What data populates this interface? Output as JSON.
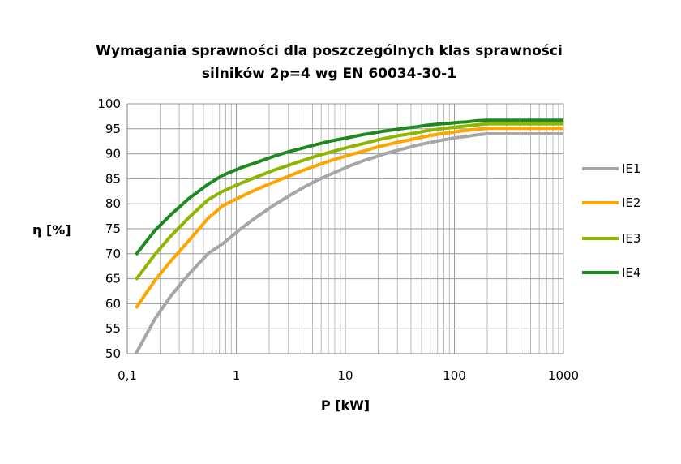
{
  "chart_data": {
    "type": "line",
    "title_line1": "Wymagania sprawności dla poszczególnych klas sprawności",
    "title_line2": "silników 2p=4 wg EN 60034-30-1",
    "xlabel": "P [kW]",
    "ylabel": "η [%]",
    "x_scale": "log",
    "xlim": [
      0.1,
      1000
    ],
    "ylim": [
      50,
      100
    ],
    "x_ticks": [
      0.1,
      1,
      10,
      100,
      1000
    ],
    "x_tick_labels": [
      "0,1",
      "1",
      "10",
      "100",
      "1000"
    ],
    "y_ticks": [
      50,
      55,
      60,
      65,
      70,
      75,
      80,
      85,
      90,
      95,
      100
    ],
    "y_tick_labels": [
      "50",
      "55",
      "60",
      "65",
      "70",
      "75",
      "80",
      "85",
      "90",
      "95",
      "100"
    ],
    "grid": true,
    "legend_position": "right",
    "series": [
      {
        "name": "IE1",
        "color": "#a6a6a6",
        "points": [
          [
            0.12,
            50.0
          ],
          [
            0.18,
            57.0
          ],
          [
            0.25,
            61.5
          ],
          [
            0.37,
            66.0
          ],
          [
            0.55,
            70.0
          ],
          [
            0.75,
            72.0
          ],
          [
            1.1,
            75.0
          ],
          [
            1.5,
            77.2
          ],
          [
            2.2,
            79.7
          ],
          [
            3,
            81.5
          ],
          [
            4,
            83.1
          ],
          [
            5.5,
            84.7
          ],
          [
            7.5,
            86.0
          ],
          [
            11,
            87.6
          ],
          [
            15,
            88.7
          ],
          [
            18.5,
            89.3
          ],
          [
            22,
            89.9
          ],
          [
            30,
            90.7
          ],
          [
            37,
            91.2
          ],
          [
            45,
            91.7
          ],
          [
            55,
            92.1
          ],
          [
            75,
            92.7
          ],
          [
            90,
            93.0
          ],
          [
            110,
            93.3
          ],
          [
            132,
            93.5
          ],
          [
            160,
            93.8
          ],
          [
            200,
            94.0
          ],
          [
            1000,
            94.0
          ]
        ]
      },
      {
        "name": "IE2",
        "color": "#ffa500",
        "points": [
          [
            0.12,
            59.1
          ],
          [
            0.18,
            64.7
          ],
          [
            0.25,
            68.5
          ],
          [
            0.37,
            72.7
          ],
          [
            0.55,
            77.1
          ],
          [
            0.75,
            79.6
          ],
          [
            1.1,
            81.4
          ],
          [
            1.5,
            82.8
          ],
          [
            2.2,
            84.3
          ],
          [
            3,
            85.5
          ],
          [
            4,
            86.6
          ],
          [
            5.5,
            87.7
          ],
          [
            7.5,
            88.7
          ],
          [
            11,
            89.8
          ],
          [
            15,
            90.6
          ],
          [
            18.5,
            91.2
          ],
          [
            22,
            91.6
          ],
          [
            30,
            92.3
          ],
          [
            37,
            92.7
          ],
          [
            45,
            93.1
          ],
          [
            55,
            93.5
          ],
          [
            75,
            94.0
          ],
          [
            90,
            94.2
          ],
          [
            110,
            94.5
          ],
          [
            132,
            94.7
          ],
          [
            160,
            94.9
          ],
          [
            200,
            95.1
          ],
          [
            1000,
            95.1
          ]
        ]
      },
      {
        "name": "IE3",
        "color": "#8db600",
        "points": [
          [
            0.12,
            64.8
          ],
          [
            0.18,
            69.9
          ],
          [
            0.25,
            73.5
          ],
          [
            0.37,
            77.3
          ],
          [
            0.55,
            80.8
          ],
          [
            0.75,
            82.5
          ],
          [
            1.1,
            84.1
          ],
          [
            1.5,
            85.3
          ],
          [
            2.2,
            86.7
          ],
          [
            3,
            87.7
          ],
          [
            4,
            88.6
          ],
          [
            5.5,
            89.6
          ],
          [
            7.5,
            90.4
          ],
          [
            11,
            91.4
          ],
          [
            15,
            92.1
          ],
          [
            18.5,
            92.6
          ],
          [
            22,
            93.0
          ],
          [
            30,
            93.6
          ],
          [
            37,
            93.9
          ],
          [
            45,
            94.2
          ],
          [
            55,
            94.6
          ],
          [
            75,
            95.0
          ],
          [
            90,
            95.2
          ],
          [
            110,
            95.4
          ],
          [
            132,
            95.6
          ],
          [
            160,
            95.8
          ],
          [
            200,
            96.0
          ],
          [
            1000,
            96.0
          ]
        ]
      },
      {
        "name": "IE4",
        "color": "#1e8a1e",
        "points": [
          [
            0.12,
            69.8
          ],
          [
            0.18,
            74.7
          ],
          [
            0.25,
            77.8
          ],
          [
            0.37,
            81.1
          ],
          [
            0.55,
            83.9
          ],
          [
            0.75,
            85.7
          ],
          [
            1.1,
            87.2
          ],
          [
            1.5,
            88.2
          ],
          [
            2.2,
            89.5
          ],
          [
            3,
            90.4
          ],
          [
            4,
            91.1
          ],
          [
            5.5,
            91.9
          ],
          [
            7.5,
            92.6
          ],
          [
            11,
            93.3
          ],
          [
            15,
            93.9
          ],
          [
            18.5,
            94.2
          ],
          [
            22,
            94.5
          ],
          [
            30,
            94.9
          ],
          [
            37,
            95.2
          ],
          [
            45,
            95.4
          ],
          [
            55,
            95.7
          ],
          [
            75,
            96.0
          ],
          [
            90,
            96.1
          ],
          [
            110,
            96.3
          ],
          [
            132,
            96.4
          ],
          [
            160,
            96.6
          ],
          [
            200,
            96.7
          ],
          [
            1000,
            96.7
          ]
        ]
      }
    ]
  }
}
